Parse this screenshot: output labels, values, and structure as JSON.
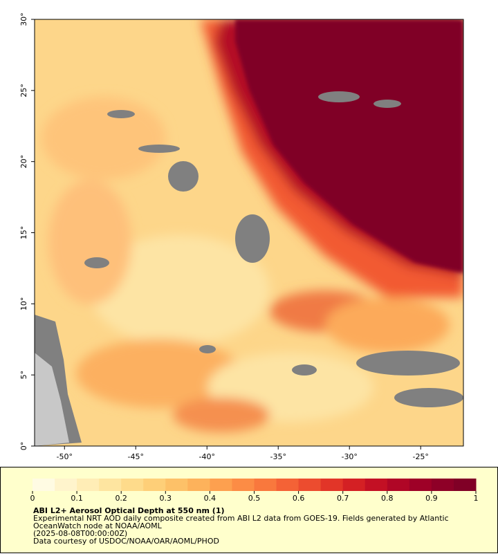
{
  "map": {
    "xlim": [
      -52.1,
      -22.0
    ],
    "ylim": [
      0,
      30
    ],
    "xticks": [
      {
        "value": -50,
        "label": "-50°"
      },
      {
        "value": -45,
        "label": "-45°"
      },
      {
        "value": -40,
        "label": "-40°"
      },
      {
        "value": -35,
        "label": "-35°"
      },
      {
        "value": -30,
        "label": "-30°"
      },
      {
        "value": -25,
        "label": "-25°"
      }
    ],
    "yticks": [
      {
        "value": 0,
        "label": "0°"
      },
      {
        "value": 5,
        "label": "5°"
      },
      {
        "value": 10,
        "label": "10°"
      },
      {
        "value": 15,
        "label": "15°"
      },
      {
        "value": 20,
        "label": "20°"
      },
      {
        "value": 25,
        "label": "25°"
      },
      {
        "value": 30,
        "label": "30°"
      }
    ]
  },
  "colorbar": {
    "lim": [
      0,
      1
    ],
    "ticks": [
      0,
      0.1,
      0.2,
      0.3,
      0.4,
      0.5,
      0.6,
      0.7,
      0.8,
      0.9,
      1
    ],
    "colors": [
      "#fffbe3",
      "#fff4cc",
      "#ffedb6",
      "#fee5a0",
      "#fedb8b",
      "#fecf78",
      "#fdc168",
      "#fdb25b",
      "#fda04f",
      "#fc8c45",
      "#f9783d",
      "#f46236",
      "#ec4c2f",
      "#e23528",
      "#d42024",
      "#c31024",
      "#b00626",
      "#9e0127",
      "#8e0027",
      "#800026"
    ]
  },
  "caption": {
    "title": "ABI L2+ Aerosol Optical Depth at 550 nm (1)",
    "lines": [
      "Experimental NRT AOD daily composite created from ABI L2 data from GOES-19. Fields generated by Atlantic",
      "OceanWatch node at NOAA/AOML",
      "(2025-08-08T00:00:00Z)",
      "Data courtesy of USDOC/NOAA/OAR/AOML/PHOD"
    ]
  }
}
